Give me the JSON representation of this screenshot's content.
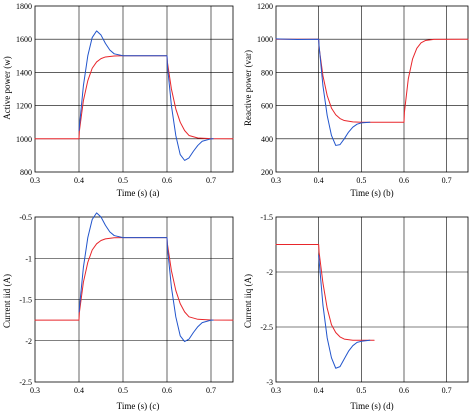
{
  "chart_data": [
    {
      "panel": "a",
      "type": "line",
      "xlabel": "Time (s) (a)",
      "ylabel": "Active power (w)",
      "xlim": [
        0.3,
        0.75
      ],
      "ylim": [
        800,
        1800
      ],
      "xticks": [
        0.3,
        0.4,
        0.5,
        0.6,
        0.7
      ],
      "yticks": [
        800,
        1000,
        1200,
        1400,
        1600,
        1800
      ],
      "xtick_labels": [
        "0.3",
        "0.4",
        "0.5",
        "0.6",
        "0.7"
      ],
      "ytick_labels": [
        "800",
        "1000",
        "1200",
        "1400",
        "1600",
        "1800"
      ],
      "grid": true,
      "series": [
        {
          "color": "#e8262b",
          "points": [
            [
              0.3,
              1000
            ],
            [
              0.4,
              1000
            ],
            [
              0.401,
              1050
            ],
            [
              0.41,
              1230
            ],
            [
              0.42,
              1350
            ],
            [
              0.43,
              1425
            ],
            [
              0.44,
              1463
            ],
            [
              0.45,
              1483
            ],
            [
              0.46,
              1493
            ],
            [
              0.48,
              1499
            ],
            [
              0.5,
              1500
            ],
            [
              0.6,
              1500
            ],
            [
              0.601,
              1460
            ],
            [
              0.61,
              1300
            ],
            [
              0.62,
              1180
            ],
            [
              0.63,
              1100
            ],
            [
              0.64,
              1050
            ],
            [
              0.65,
              1020
            ],
            [
              0.67,
              1005
            ],
            [
              0.7,
              1001
            ],
            [
              0.75,
              1000
            ]
          ]
        },
        {
          "color": "#2255cc",
          "points": [
            [
              0.4,
              1050
            ],
            [
              0.41,
              1320
            ],
            [
              0.42,
              1500
            ],
            [
              0.43,
              1610
            ],
            [
              0.44,
              1650
            ],
            [
              0.45,
              1625
            ],
            [
              0.46,
              1575
            ],
            [
              0.47,
              1535
            ],
            [
              0.48,
              1512
            ],
            [
              0.5,
              1500
            ],
            [
              0.6,
              1500
            ],
            [
              0.601,
              1440
            ],
            [
              0.61,
              1200
            ],
            [
              0.62,
              1020
            ],
            [
              0.63,
              905
            ],
            [
              0.64,
              870
            ],
            [
              0.65,
              885
            ],
            [
              0.66,
              925
            ],
            [
              0.67,
              960
            ],
            [
              0.68,
              985
            ],
            [
              0.7,
              1000
            ],
            [
              0.705,
              1000
            ]
          ]
        }
      ]
    },
    {
      "panel": "b",
      "type": "line",
      "xlabel": "Time (s) (b)",
      "ylabel": "Reactive power (var)",
      "xlim": [
        0.3,
        0.75
      ],
      "ylim": [
        200,
        1200
      ],
      "xticks": [
        0.3,
        0.4,
        0.5,
        0.6,
        0.7
      ],
      "yticks": [
        200,
        400,
        600,
        800,
        1000,
        1200
      ],
      "xtick_labels": [
        "0.3",
        "0.4",
        "0.5",
        "0.6",
        "0.7"
      ],
      "ytick_labels": [
        "200",
        "400",
        "600",
        "800",
        "1000",
        "1200"
      ],
      "grid": true,
      "series": [
        {
          "color": "#e8262b",
          "points": [
            [
              0.3,
              1000
            ],
            [
              0.4,
              1000
            ],
            [
              0.401,
              950
            ],
            [
              0.41,
              780
            ],
            [
              0.42,
              660
            ],
            [
              0.43,
              585
            ],
            [
              0.44,
              545
            ],
            [
              0.45,
              522
            ],
            [
              0.46,
              510
            ],
            [
              0.48,
              502
            ],
            [
              0.5,
              500
            ],
            [
              0.6,
              500
            ],
            [
              0.601,
              560
            ],
            [
              0.61,
              760
            ],
            [
              0.62,
              880
            ],
            [
              0.63,
              945
            ],
            [
              0.64,
              978
            ],
            [
              0.65,
              992
            ],
            [
              0.67,
              999
            ],
            [
              0.75,
              1000
            ]
          ]
        },
        {
          "color": "#2255cc",
          "points": [
            [
              0.3,
              1002
            ],
            [
              0.35,
              998
            ],
            [
              0.4,
              1000
            ],
            [
              0.401,
              960
            ],
            [
              0.41,
              720
            ],
            [
              0.42,
              540
            ],
            [
              0.43,
              420
            ],
            [
              0.44,
              360
            ],
            [
              0.45,
              365
            ],
            [
              0.46,
              400
            ],
            [
              0.47,
              440
            ],
            [
              0.48,
              470
            ],
            [
              0.49,
              488
            ],
            [
              0.5,
              496
            ],
            [
              0.52,
              500
            ]
          ]
        }
      ]
    },
    {
      "panel": "c",
      "type": "line",
      "xlabel": "Time (s) (c)",
      "ylabel": "Current iid (A)",
      "xlim": [
        0.3,
        0.75
      ],
      "ylim": [
        -2.5,
        -0.5
      ],
      "xticks": [
        0.3,
        0.4,
        0.5,
        0.6,
        0.7
      ],
      "yticks": [
        -2.5,
        -2,
        -1.5,
        -1,
        -0.5
      ],
      "xtick_labels": [
        "0.3",
        "0.4",
        "0.5",
        "0.6",
        "0.7"
      ],
      "ytick_labels": [
        "-2.5",
        "-2",
        "-1.5",
        "-1",
        "-0.5"
      ],
      "grid": true,
      "series": [
        {
          "color": "#e8262b",
          "points": [
            [
              0.3,
              -1.75
            ],
            [
              0.4,
              -1.75
            ],
            [
              0.401,
              -1.65
            ],
            [
              0.41,
              -1.29
            ],
            [
              0.42,
              -1.05
            ],
            [
              0.43,
              -0.9
            ],
            [
              0.44,
              -0.825
            ],
            [
              0.45,
              -0.785
            ],
            [
              0.46,
              -0.765
            ],
            [
              0.48,
              -0.752
            ],
            [
              0.5,
              -0.75
            ],
            [
              0.6,
              -0.75
            ],
            [
              0.601,
              -0.83
            ],
            [
              0.61,
              -1.15
            ],
            [
              0.62,
              -1.39
            ],
            [
              0.63,
              -1.55
            ],
            [
              0.64,
              -1.65
            ],
            [
              0.65,
              -1.71
            ],
            [
              0.67,
              -1.74
            ],
            [
              0.7,
              -1.748
            ],
            [
              0.75,
              -1.75
            ]
          ]
        },
        {
          "color": "#2255cc",
          "points": [
            [
              0.4,
              -1.65
            ],
            [
              0.41,
              -1.11
            ],
            [
              0.42,
              -0.75
            ],
            [
              0.43,
              -0.53
            ],
            [
              0.44,
              -0.45
            ],
            [
              0.45,
              -0.5
            ],
            [
              0.46,
              -0.6
            ],
            [
              0.47,
              -0.68
            ],
            [
              0.48,
              -0.725
            ],
            [
              0.5,
              -0.75
            ],
            [
              0.6,
              -0.75
            ],
            [
              0.601,
              -0.87
            ],
            [
              0.61,
              -1.35
            ],
            [
              0.62,
              -1.71
            ],
            [
              0.63,
              -1.94
            ],
            [
              0.64,
              -2.01
            ],
            [
              0.65,
              -1.98
            ],
            [
              0.66,
              -1.9
            ],
            [
              0.67,
              -1.83
            ],
            [
              0.68,
              -1.78
            ],
            [
              0.7,
              -1.75
            ],
            [
              0.705,
              -1.75
            ]
          ]
        }
      ]
    },
    {
      "panel": "d",
      "type": "line",
      "xlabel": "Time (s) (d)",
      "ylabel": "Current iiq (A)",
      "xlim": [
        0.3,
        0.75
      ],
      "ylim": [
        -3,
        -1.5
      ],
      "xticks": [
        0.3,
        0.4,
        0.5,
        0.6,
        0.7
      ],
      "yticks": [
        -3,
        -2.5,
        -2,
        -1.5
      ],
      "xtick_labels": [
        "0.3",
        "0.4",
        "0.5",
        "0.6",
        "0.7"
      ],
      "ytick_labels": [
        "-3",
        "-2.5",
        "-2",
        "-1.5"
      ],
      "grid": true,
      "series": [
        {
          "color": "#e8262b",
          "points": [
            [
              0.3,
              -1.75
            ],
            [
              0.4,
              -1.75
            ],
            [
              0.401,
              -1.82
            ],
            [
              0.41,
              -2.1
            ],
            [
              0.42,
              -2.33
            ],
            [
              0.43,
              -2.48
            ],
            [
              0.44,
              -2.55
            ],
            [
              0.45,
              -2.59
            ],
            [
              0.46,
              -2.61
            ],
            [
              0.48,
              -2.62
            ],
            [
              0.53,
              -2.62
            ]
          ]
        },
        {
          "color": "#2255cc",
          "points": [
            [
              0.4,
              -1.85
            ],
            [
              0.41,
              -2.3
            ],
            [
              0.42,
              -2.6
            ],
            [
              0.43,
              -2.78
            ],
            [
              0.44,
              -2.875
            ],
            [
              0.45,
              -2.86
            ],
            [
              0.46,
              -2.79
            ],
            [
              0.47,
              -2.72
            ],
            [
              0.48,
              -2.67
            ],
            [
              0.49,
              -2.64
            ],
            [
              0.5,
              -2.63
            ],
            [
              0.52,
              -2.62
            ]
          ]
        }
      ]
    }
  ]
}
